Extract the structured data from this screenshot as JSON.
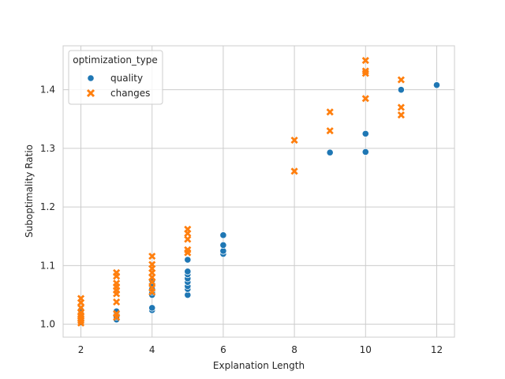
{
  "chart_data": {
    "type": "scatter",
    "xlabel": "Explanation Length",
    "ylabel": "Suboptimality Ratio",
    "xlim": [
      1.5,
      12.5
    ],
    "ylim": [
      0.978,
      1.475
    ],
    "xticks": [
      2,
      4,
      6,
      8,
      10,
      12
    ],
    "yticks": [
      1.0,
      1.1,
      1.2,
      1.3,
      1.4
    ],
    "grid": true,
    "legend": {
      "title": "optimization_type",
      "placement": "top-left"
    },
    "series": [
      {
        "name": "quality",
        "marker": "circle",
        "color": "#1f77b4",
        "points": [
          [
            2,
            1.003
          ],
          [
            2,
            1.008
          ],
          [
            2,
            1.012
          ],
          [
            2,
            1.018
          ],
          [
            2,
            1.024
          ],
          [
            3,
            1.008
          ],
          [
            3,
            1.013
          ],
          [
            3,
            1.018
          ],
          [
            3,
            1.022
          ],
          [
            4,
            1.024
          ],
          [
            4,
            1.028
          ],
          [
            4,
            1.05
          ],
          [
            4,
            1.055
          ],
          [
            4,
            1.06
          ],
          [
            4,
            1.068
          ],
          [
            4,
            1.075
          ],
          [
            5,
            1.05
          ],
          [
            5,
            1.06
          ],
          [
            5,
            1.065
          ],
          [
            5,
            1.072
          ],
          [
            5,
            1.078
          ],
          [
            5,
            1.085
          ],
          [
            5,
            1.09
          ],
          [
            5,
            1.11
          ],
          [
            6,
            1.12
          ],
          [
            6,
            1.125
          ],
          [
            6,
            1.135
          ],
          [
            6,
            1.152
          ],
          [
            9,
            1.293
          ],
          [
            10,
            1.294
          ],
          [
            10,
            1.325
          ],
          [
            11,
            1.4
          ],
          [
            12,
            1.408
          ]
        ]
      },
      {
        "name": "changes",
        "marker": "x",
        "color": "#ff7f0e",
        "points": [
          [
            2,
            1.002
          ],
          [
            2,
            1.006
          ],
          [
            2,
            1.01
          ],
          [
            2,
            1.015
          ],
          [
            2,
            1.02
          ],
          [
            2,
            1.028
          ],
          [
            2,
            1.037
          ],
          [
            2,
            1.044
          ],
          [
            3,
            1.012
          ],
          [
            3,
            1.018
          ],
          [
            3,
            1.038
          ],
          [
            3,
            1.052
          ],
          [
            3,
            1.058
          ],
          [
            3,
            1.064
          ],
          [
            3,
            1.07
          ],
          [
            3,
            1.082
          ],
          [
            3,
            1.088
          ],
          [
            4,
            1.055
          ],
          [
            4,
            1.062
          ],
          [
            4,
            1.072
          ],
          [
            4,
            1.08
          ],
          [
            4,
            1.088
          ],
          [
            4,
            1.095
          ],
          [
            4,
            1.102
          ],
          [
            4,
            1.116
          ],
          [
            5,
            1.122
          ],
          [
            5,
            1.127
          ],
          [
            5,
            1.145
          ],
          [
            5,
            1.155
          ],
          [
            5,
            1.162
          ],
          [
            8,
            1.261
          ],
          [
            8,
            1.314
          ],
          [
            9,
            1.33
          ],
          [
            9,
            1.362
          ],
          [
            10,
            1.385
          ],
          [
            10,
            1.428
          ],
          [
            10,
            1.432
          ],
          [
            10,
            1.45
          ],
          [
            11,
            1.357
          ],
          [
            11,
            1.37
          ],
          [
            11,
            1.417
          ]
        ]
      }
    ]
  }
}
